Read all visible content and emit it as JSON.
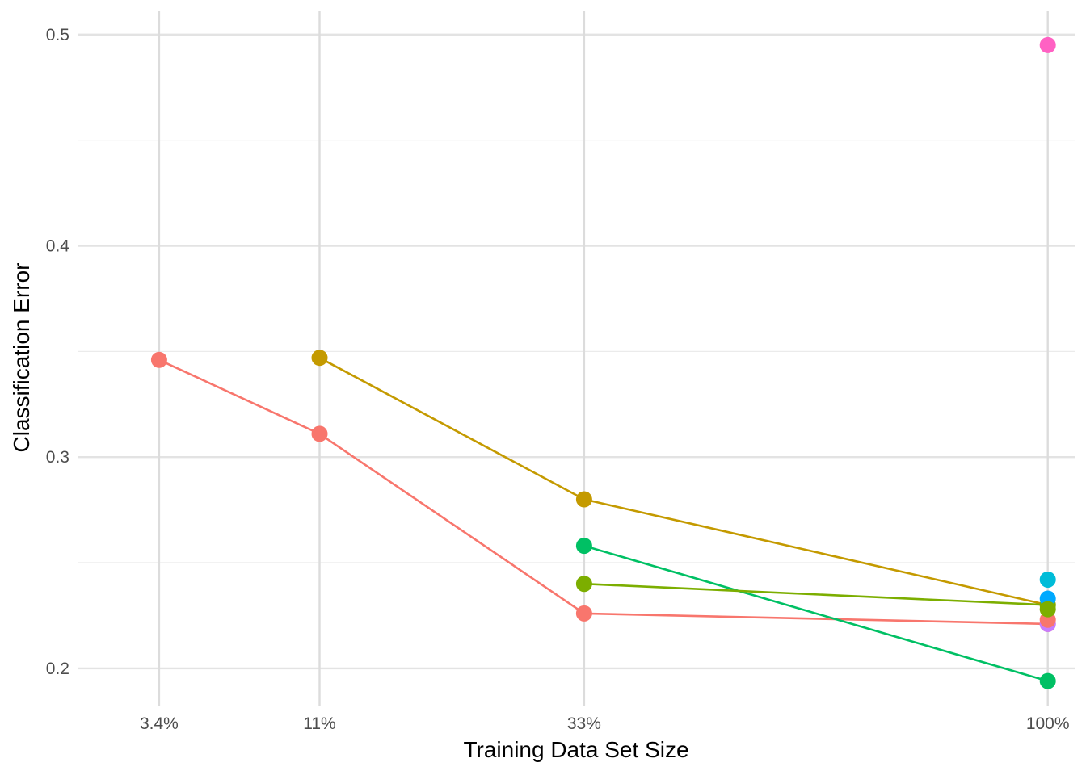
{
  "chart_data": {
    "type": "line",
    "title": "",
    "xlabel": "Training Data Set Size",
    "ylabel": "Classification Error",
    "x_ticks": [
      {
        "value": 3.4,
        "label": "3.4%"
      },
      {
        "value": 11,
        "label": "11%"
      },
      {
        "value": 33,
        "label": "33%"
      },
      {
        "value": 100,
        "label": "100%"
      }
    ],
    "x_scale": "sqrt",
    "xlim": [
      1.2,
      105
    ],
    "y_ticks": [
      {
        "value": 0.2,
        "label": "0.2"
      },
      {
        "value": 0.3,
        "label": "0.3"
      },
      {
        "value": 0.4,
        "label": "0.4"
      },
      {
        "value": 0.5,
        "label": "0.5"
      }
    ],
    "y_minor_ticks": [
      0.25,
      0.35,
      0.45
    ],
    "ylim": [
      0.182,
      0.511
    ],
    "grid": true,
    "legend": "none",
    "series": [
      {
        "color": "#F8766D",
        "x": [
          3.4,
          11,
          33,
          100
        ],
        "y": [
          0.346,
          0.311,
          0.226,
          0.221
        ]
      },
      {
        "color": "#C49A00",
        "x": [
          11,
          33,
          100
        ],
        "y": [
          0.347,
          0.28,
          0.23
        ]
      },
      {
        "color": "#00C064",
        "x": [
          33,
          100
        ],
        "y": [
          0.258,
          0.194
        ]
      },
      {
        "color": "#7CAE00",
        "x": [
          33,
          100
        ],
        "y": [
          0.24,
          0.23
        ]
      },
      {
        "color": "#C77CFF",
        "x": [
          100
        ],
        "y": [
          0.221
        ]
      },
      {
        "color": "#F8766D",
        "x": [
          100
        ],
        "y": [
          0.223
        ]
      },
      {
        "color": "#00A9FF",
        "x": [
          100
        ],
        "y": [
          0.233
        ]
      },
      {
        "color": "#00BCD8",
        "x": [
          100
        ],
        "y": [
          0.242
        ]
      },
      {
        "color": "#7CAE00",
        "x": [
          100
        ],
        "y": [
          0.228
        ]
      },
      {
        "color": "#FF61C3",
        "x": [
          100
        ],
        "y": [
          0.495
        ]
      }
    ]
  }
}
